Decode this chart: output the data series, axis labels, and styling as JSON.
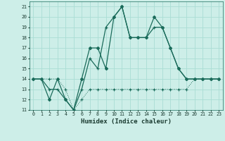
{
  "xlabel": "Humidex (Indice chaleur)",
  "x_values": [
    0,
    1,
    2,
    3,
    4,
    5,
    6,
    7,
    8,
    9,
    10,
    11,
    12,
    13,
    14,
    15,
    16,
    17,
    18,
    19,
    20,
    21,
    22,
    23
  ],
  "series1": [
    14,
    14,
    14,
    14,
    13,
    11,
    12,
    13,
    13,
    13,
    13,
    13,
    13,
    13,
    13,
    13,
    13,
    13,
    13,
    13,
    14,
    14,
    14,
    14
  ],
  "series2": [
    14,
    14,
    12,
    14,
    12,
    11,
    14,
    17,
    17,
    15,
    20,
    21,
    18,
    18,
    18,
    20,
    19,
    17,
    15,
    14,
    14,
    14,
    14,
    14
  ],
  "series3": [
    14,
    14,
    13,
    13,
    12,
    11,
    13,
    16,
    15,
    19,
    20,
    21,
    18,
    18,
    18,
    19,
    19,
    17,
    15,
    14,
    14,
    14,
    14,
    14
  ],
  "ylim": [
    11,
    21.5
  ],
  "yticks": [
    11,
    12,
    13,
    14,
    15,
    16,
    17,
    18,
    19,
    20,
    21
  ],
  "line_color": "#1a6b5a",
  "bg_color": "#cdeee8",
  "grid_color": "#aaddd4"
}
